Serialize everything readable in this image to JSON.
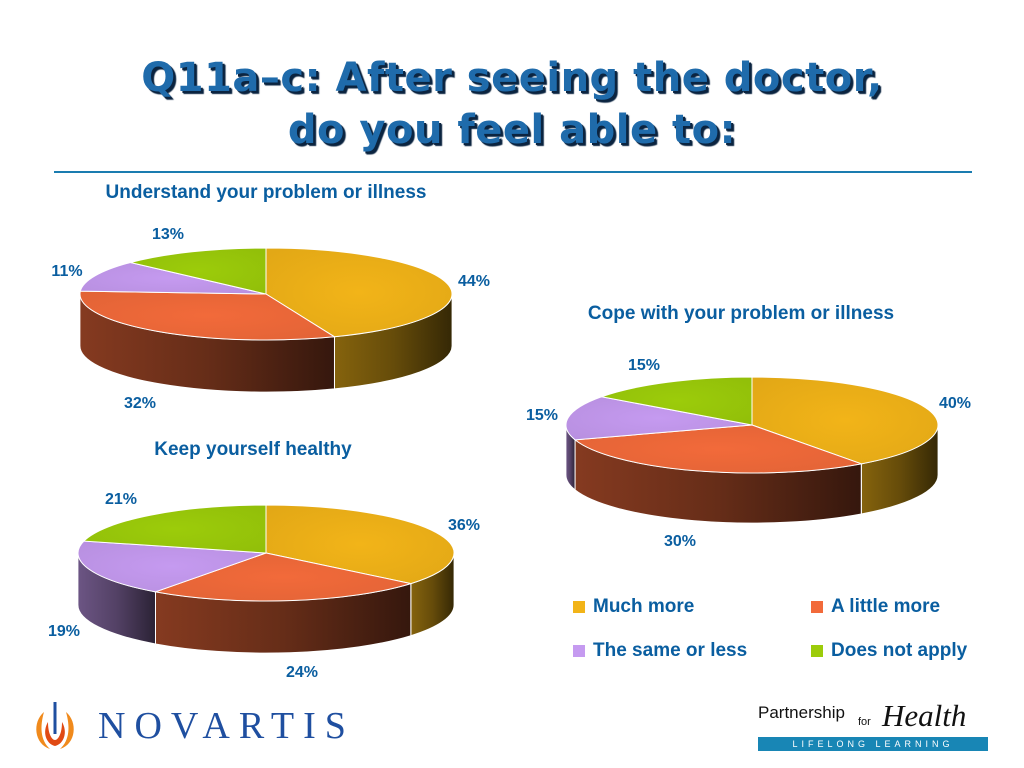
{
  "title": {
    "line1": "Q11a–c: After seeing the doctor,",
    "line2": "do you feel able to:"
  },
  "colors": {
    "much_more": "#f2b418",
    "a_little_more": "#f26a3a",
    "same_or_less": "#c59af0",
    "does_not_apply": "#9ccc0a",
    "label_text": "#0a5ea0",
    "title_text": "#1f6bab"
  },
  "chart_data": [
    {
      "type": "pie",
      "title": "Understand your problem or illness",
      "categories": [
        "Much more",
        "A little more",
        "The same or less",
        "Does not apply"
      ],
      "values": [
        44,
        32,
        11,
        13
      ],
      "labels": [
        "44%",
        "32%",
        "11%",
        "13%"
      ]
    },
    {
      "type": "pie",
      "title": "Cope with your problem or illness",
      "categories": [
        "Much more",
        "A little more",
        "The same or less",
        "Does not apply"
      ],
      "values": [
        40,
        30,
        15,
        15
      ],
      "labels": [
        "40%",
        "30%",
        "15%",
        "15%"
      ]
    },
    {
      "type": "pie",
      "title": "Keep yourself healthy",
      "categories": [
        "Much more",
        "A little more",
        "The same or less",
        "Does not apply"
      ],
      "values": [
        36,
        24,
        19,
        21
      ],
      "labels": [
        "36%",
        "24%",
        "19%",
        "21%"
      ]
    }
  ],
  "legend": {
    "items": [
      {
        "label": "Much more",
        "color": "#f2b418"
      },
      {
        "label": "A little more",
        "color": "#f26a3a"
      },
      {
        "label": "The same or less",
        "color": "#c59af0"
      },
      {
        "label": "Does not apply",
        "color": "#9ccc0a"
      }
    ]
  },
  "footer": {
    "novartis": "NOVARTIS",
    "novartis_icon": "flame-icon",
    "partner_a": "Partnership",
    "partner_b": "for",
    "partner_c": "Health",
    "partner_tagline": "LIFELONG LEARNING"
  }
}
